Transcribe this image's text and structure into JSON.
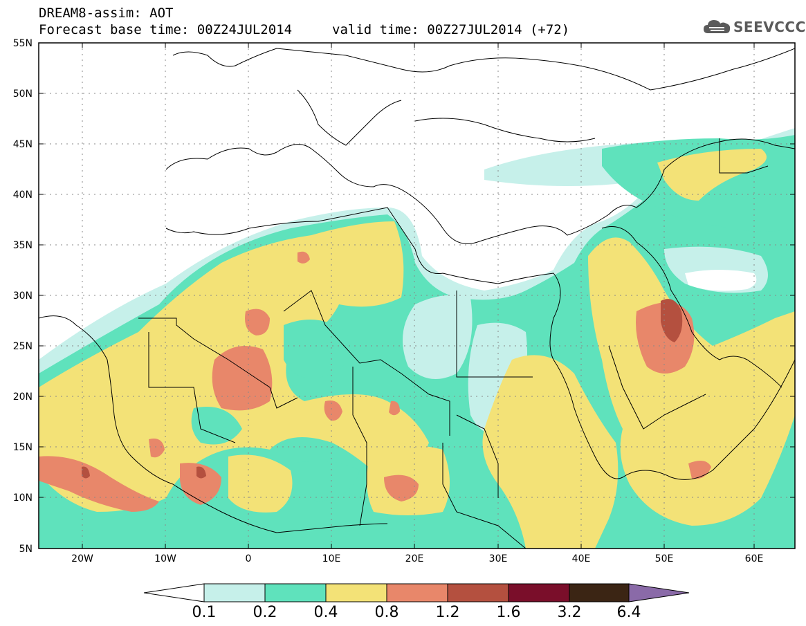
{
  "header": {
    "model_title": "DREAM8-assim: AOT",
    "base_time": "Forecast base time: 00Z24JUL2014",
    "valid_time": "valid time: 00Z27JUL2014 (+72)"
  },
  "logo": {
    "text": "SEEVCCC",
    "icon": "cloud-icon"
  },
  "map": {
    "lat_labels": [
      "55N",
      "50N",
      "45N",
      "40N",
      "35N",
      "30N",
      "25N",
      "20N",
      "15N",
      "10N",
      "5N"
    ],
    "lon_labels": [
      "20W",
      "10W",
      "0",
      "10E",
      "20E",
      "30E",
      "40E",
      "50E",
      "60E"
    ],
    "grid": "dotted"
  },
  "colorbar": {
    "labels": [
      "0.1",
      "0.2",
      "0.4",
      "0.8",
      "1.2",
      "1.6",
      "3.2",
      "6.4"
    ],
    "colors": [
      "#c6f0ea",
      "#5fe2bc",
      "#f3e277",
      "#e8876a",
      "#b4503f",
      "#7a0e2a",
      "#3b2514"
    ],
    "under_color": "#ffffff",
    "over_color": "#8a6aa8"
  },
  "palette": {
    "land_bg": "#ffffff",
    "border": "#000000"
  }
}
